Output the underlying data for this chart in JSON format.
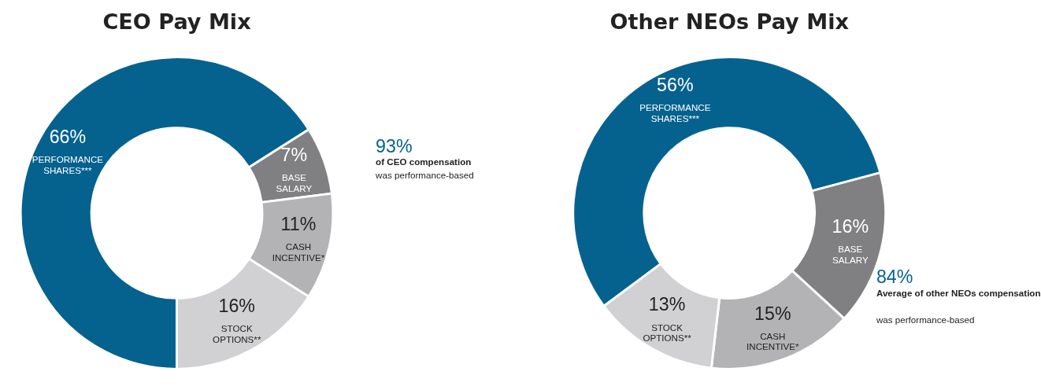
{
  "chart_data": [
    {
      "type": "donut",
      "title": "CEO Pay Mix",
      "categories": [
        "PERFORMANCE SHARES***",
        "BASE SALARY",
        "CASH INCENTIVE*",
        "STOCK OPTIONS**"
      ],
      "values": [
        66,
        7,
        11,
        16
      ],
      "value_labels": [
        "66%",
        "7%",
        "11%",
        "16%"
      ],
      "colors": [
        "#05628f",
        "#808083",
        "#b3b3b6",
        "#d1d1d3"
      ],
      "annotations": [
        "93%",
        "of CEO compensation",
        "was performance-based"
      ]
    },
    {
      "type": "donut",
      "title": "Other NEOs Pay Mix",
      "categories": [
        "PERFORMANCE SHARES***",
        "BASE SALARY",
        "CASH INCENTIVE*",
        "STOCK OPTIONS**"
      ],
      "values": [
        56,
        16,
        15,
        13
      ],
      "value_labels": [
        "56%",
        "16%",
        "15%",
        "13%"
      ],
      "colors": [
        "#05628f",
        "#808083",
        "#b3b3b6",
        "#d1d1d3"
      ],
      "annotations": [
        "84%",
        "Average of other NEOs compensation",
        "was performance-based"
      ]
    }
  ]
}
